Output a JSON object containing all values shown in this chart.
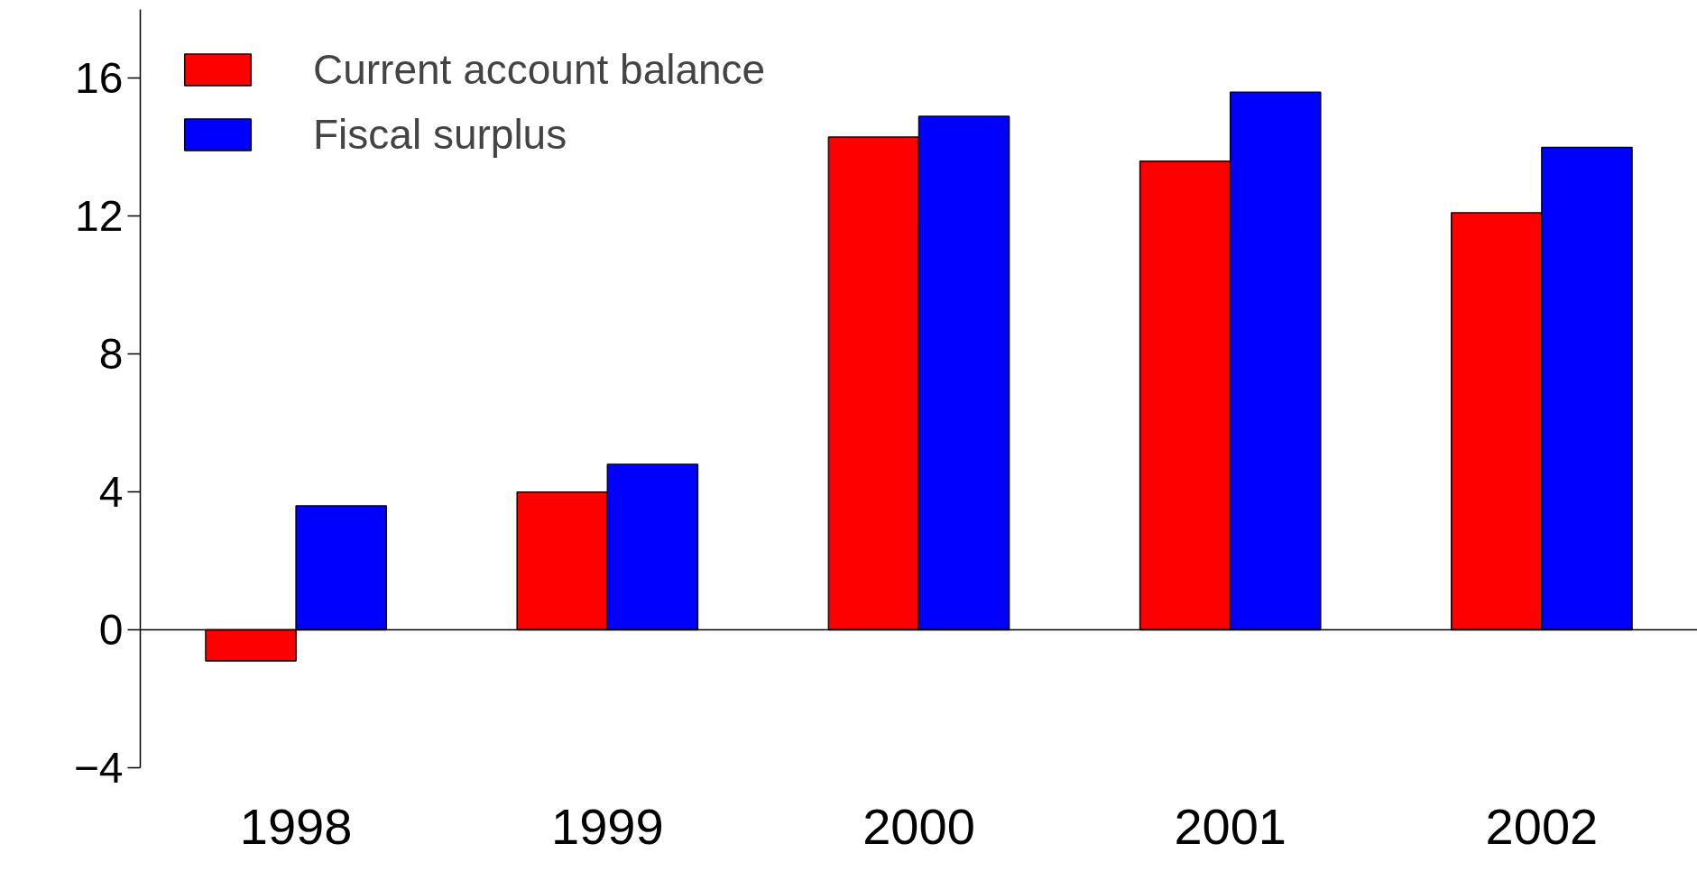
{
  "chart_data": {
    "type": "bar",
    "categories": [
      "1998",
      "1999",
      "2000",
      "2001",
      "2002"
    ],
    "series": [
      {
        "name": "Current account balance",
        "color": "#ff0000",
        "values": [
          -0.9,
          4.0,
          14.3,
          13.6,
          12.1
        ]
      },
      {
        "name": "Fiscal surplus",
        "color": "#0000ff",
        "values": [
          3.6,
          4.8,
          14.9,
          15.6,
          14.0
        ]
      }
    ],
    "ylim": [
      -4,
      18
    ],
    "yticks": [
      -4,
      0,
      4,
      8,
      12,
      16
    ],
    "grid": false,
    "legend": "top left",
    "ref_lines": [
      {
        "axis": "y",
        "value": 0
      }
    ]
  }
}
